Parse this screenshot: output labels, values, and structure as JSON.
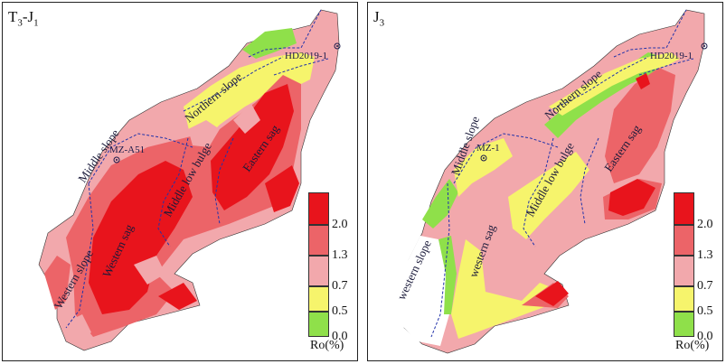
{
  "panels": [
    {
      "id": "left",
      "title_main": "T",
      "title_sub1": "3",
      "title_dash": "-J",
      "title_sub2": "1",
      "wells": [
        "HD2019-1",
        "MZ-A51"
      ],
      "regions": [
        "Northern slope",
        "Middle slope",
        "Middle low bulge",
        "Eastern sag",
        "Western sag",
        "Western slope"
      ]
    },
    {
      "id": "right",
      "title_main": "J",
      "title_sub1": "3",
      "wells": [
        "HD2019-1",
        "MZ-1"
      ],
      "regions": [
        "Northern slope",
        "Middle slope",
        "Middle low bulge",
        "Eastern sag",
        "western sag",
        "western slope"
      ]
    }
  ],
  "legend": {
    "ticks": [
      "2.0",
      "1.3",
      "0.7",
      "0.5",
      "0.0"
    ],
    "unit": "Ro(%)",
    "colors": {
      "gt2": "#e8141c",
      "c13_20": "#ec6468",
      "c07_13": "#f2a8ac",
      "c05_07": "#f6f46c",
      "c00_05": "#8fe04a"
    }
  }
}
